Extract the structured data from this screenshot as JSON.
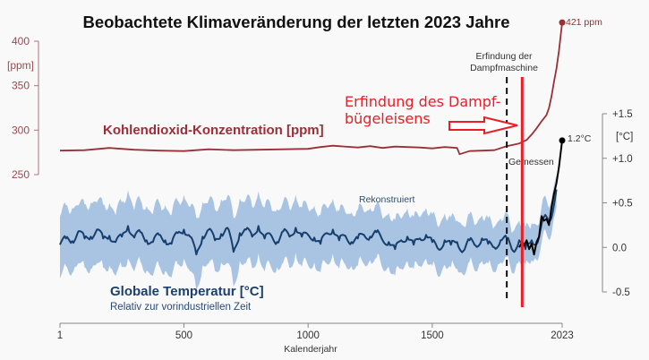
{
  "chart_data": {
    "type": "line",
    "title": "Beobachtete Klimaveränderung der letzten 2023 Jahre",
    "xlabel": "Kalenderjahr",
    "xlim": [
      1,
      2023
    ],
    "x_ticks": [
      "1",
      "500",
      "1000",
      "1500",
      "2023"
    ],
    "x_tick_values": [
      1,
      500,
      1000,
      1500,
      2023
    ],
    "co2_axis": {
      "unit_label": "[ppm]",
      "ylim": [
        250,
        400
      ],
      "ticks": [
        "400",
        "350",
        "300",
        "250"
      ],
      "tick_values": [
        400,
        350,
        300,
        250
      ],
      "color": "#9b2f36"
    },
    "temp_axis": {
      "unit_label": "[°C]",
      "ylim": [
        -0.5,
        1.5
      ],
      "ticks": [
        "+1.5",
        "+1.0",
        "+0.5",
        "0.0",
        "-0.5"
      ],
      "tick_values": [
        1.5,
        1.0,
        0.5,
        0.0,
        -0.5
      ],
      "color": "#333333"
    },
    "series": [
      {
        "name": "Kohlendioxid-Konzentration [ppm]",
        "axis": "co2",
        "color": "#9b2f36",
        "end_label": "421 ppm",
        "x": [
          1,
          100,
          200,
          300,
          400,
          500,
          600,
          700,
          800,
          900,
          1000,
          1050,
          1100,
          1200,
          1250,
          1300,
          1350,
          1400,
          1450,
          1500,
          1550,
          1600,
          1610,
          1650,
          1700,
          1750,
          1800,
          1850,
          1880,
          1900,
          1920,
          1940,
          1960,
          1970,
          1980,
          1990,
          2000,
          2010,
          2023
        ],
        "y": [
          277,
          277.5,
          280,
          278,
          277,
          276.5,
          278.5,
          277.5,
          278,
          278.5,
          279,
          281,
          282.5,
          280.5,
          282,
          280,
          281.5,
          281,
          280.5,
          279.5,
          281,
          280,
          273,
          276.5,
          277,
          277.5,
          282,
          285,
          289,
          295,
          302,
          310,
          317,
          325,
          338,
          354,
          369,
          389,
          421
        ]
      },
      {
        "name": "Rekonstruiert",
        "axis": "temp",
        "color": "#173f6d",
        "band_color": "#a9c4e2",
        "x": [
          1,
          25,
          50,
          75,
          100,
          125,
          150,
          175,
          200,
          225,
          250,
          275,
          300,
          325,
          350,
          375,
          400,
          425,
          450,
          475,
          500,
          525,
          550,
          575,
          600,
          625,
          650,
          675,
          700,
          725,
          750,
          775,
          800,
          825,
          850,
          875,
          900,
          925,
          950,
          975,
          1000,
          1025,
          1050,
          1075,
          1100,
          1125,
          1150,
          1175,
          1200,
          1225,
          1250,
          1275,
          1300,
          1325,
          1350,
          1375,
          1400,
          1425,
          1450,
          1475,
          1500,
          1525,
          1550,
          1575,
          1600,
          1625,
          1650,
          1675,
          1700,
          1725,
          1750,
          1775,
          1800,
          1825,
          1850,
          1875,
          1900,
          1925,
          1950,
          1975,
          2000
        ],
        "y": [
          0.03,
          0.1,
          0.07,
          0.18,
          0.1,
          0.12,
          0.2,
          0.1,
          0.13,
          0.06,
          0.12,
          0.24,
          0.11,
          0.17,
          0.08,
          0.06,
          0.14,
          0.08,
          0.04,
          0.16,
          0.2,
          0.12,
          -0.08,
          0.12,
          0.2,
          0.08,
          0.15,
          0.22,
          -0.05,
          0.16,
          0.2,
          0.12,
          0.24,
          0.1,
          0.14,
          0.06,
          0.18,
          0.12,
          0.22,
          0.12,
          0.14,
          0.11,
          0.04,
          0.16,
          0.2,
          0.08,
          0.13,
          0.06,
          0.1,
          0.14,
          0.12,
          0.17,
          0.08,
          0.06,
          -0.02,
          0.08,
          0.12,
          0.03,
          0.1,
          0.14,
          0.06,
          -0.02,
          0.08,
          0.03,
          0.06,
          -0.04,
          0.08,
          0.02,
          0.1,
          0.04,
          0.0,
          0.08,
          0.1,
          -0.04,
          0.08,
          -0.02,
          0.08,
          0.06,
          0.34,
          0.3,
          0.65
        ],
        "band_halfwidth": [
          0.3,
          0.29,
          0.3,
          0.28,
          0.3,
          0.31,
          0.3,
          0.3,
          0.29,
          0.3,
          0.31,
          0.32,
          0.3,
          0.29,
          0.3,
          0.3,
          0.3,
          0.31,
          0.3,
          0.3,
          0.3,
          0.31,
          0.35,
          0.3,
          0.3,
          0.29,
          0.3,
          0.32,
          0.33,
          0.3,
          0.3,
          0.29,
          0.3,
          0.3,
          0.29,
          0.28,
          0.28,
          0.28,
          0.28,
          0.27,
          0.27,
          0.27,
          0.26,
          0.27,
          0.26,
          0.26,
          0.25,
          0.25,
          0.25,
          0.25,
          0.24,
          0.24,
          0.24,
          0.25,
          0.25,
          0.24,
          0.24,
          0.23,
          0.23,
          0.23,
          0.23,
          0.23,
          0.23,
          0.22,
          0.22,
          0.22,
          0.21,
          0.21,
          0.2,
          0.2,
          0.2,
          0.19,
          0.19,
          0.18,
          0.17,
          0.16,
          0.15,
          0.14,
          0.14,
          0.13,
          0.13
        ]
      },
      {
        "name": "Gemessen",
        "axis": "temp",
        "color": "#000000",
        "end_label": "1.2°C",
        "x": [
          1850,
          1860,
          1870,
          1880,
          1890,
          1900,
          1910,
          1920,
          1930,
          1940,
          1950,
          1960,
          1970,
          1980,
          1990,
          2000,
          2010,
          2023
        ],
        "y": [
          0.0,
          0.05,
          0.02,
          0.08,
          -0.02,
          0.04,
          -0.08,
          0.06,
          0.12,
          0.35,
          0.3,
          0.32,
          0.25,
          0.45,
          0.6,
          0.72,
          0.9,
          1.2
        ]
      }
    ],
    "annotations": [
      {
        "text_lines": [
          "Erfindung der",
          "Dampfmaschine"
        ],
        "x": 1800,
        "style": "dashed-black-vline"
      },
      {
        "text_lines": [
          "Erfindung des Dampf-",
          "bügeleisens"
        ],
        "x": 1862,
        "style": "solid-red-vline-with-arrow",
        "color": "#ee1c24"
      }
    ],
    "labels": {
      "co2_series_label": "Kohlendioxid-Konzentration [ppm]",
      "temp_series_label": "Globale Temperatur [°C]",
      "temp_subtitle": "Relativ zur vorindustriellen Zeit",
      "reconstructed": "Rekonstruiert",
      "measured": "Gemessen",
      "co2_end": "421 ppm",
      "temp_end": "1.2°C"
    },
    "grid": false
  }
}
